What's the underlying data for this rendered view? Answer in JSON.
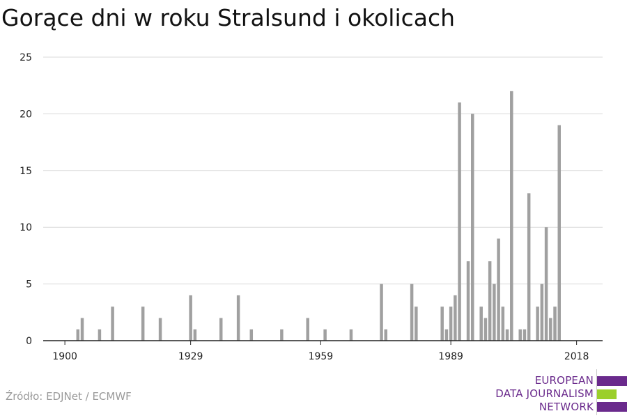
{
  "chart_data": {
    "type": "bar",
    "title": "Gorące dni w roku Stralsund i okolicach",
    "xlabel": "",
    "ylabel": "",
    "x": [
      1903,
      1904,
      1908,
      1911,
      1918,
      1922,
      1929,
      1930,
      1936,
      1940,
      1943,
      1950,
      1956,
      1960,
      1966,
      1973,
      1974,
      1980,
      1981,
      1987,
      1988,
      1989,
      1990,
      1991,
      1993,
      1994,
      1996,
      1997,
      1998,
      1999,
      2000,
      2001,
      2002,
      2003,
      2005,
      2006,
      2007,
      2009,
      2010,
      2011,
      2012,
      2013,
      2014,
      2016
    ],
    "values": [
      1,
      2,
      1,
      3,
      3,
      2,
      4,
      1,
      2,
      4,
      1,
      1,
      2,
      1,
      1,
      5,
      1,
      5,
      3,
      3,
      1,
      3,
      4,
      21,
      7,
      20,
      3,
      2,
      7,
      5,
      9,
      3,
      1,
      22,
      1,
      1,
      13,
      3,
      5,
      10,
      2,
      3,
      19,
      0
    ],
    "xlim": [
      1895,
      2024
    ],
    "ylim": [
      0,
      25
    ],
    "x_ticks": [
      "1900",
      "1929",
      "1959",
      "1989",
      "2018"
    ],
    "y_ticks": [
      "0",
      "5",
      "10",
      "15",
      "20",
      "25"
    ],
    "grid": true,
    "bar_color": "#a0a0a0"
  },
  "footer": {
    "source": "Źródło: EDJNet / ECMWF",
    "logo_lines": [
      "EUROPEAN",
      "DATA JOURNALISM",
      "NETWORK"
    ]
  },
  "colors": {
    "logo_purple": "#6a2a8c",
    "logo_green": "#9bcf2b"
  }
}
